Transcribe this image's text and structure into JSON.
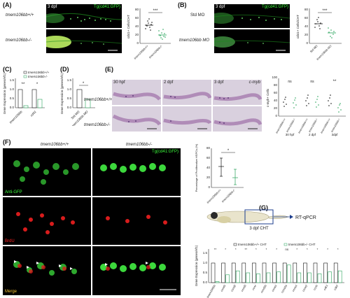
{
  "panels": {
    "A": {
      "letter": "(A)",
      "stage": "3 dpf",
      "transgene": "Tg(cd41:GFP)",
      "row_top": "tmem106bb+/+",
      "row_bottom": "tmem106bb-/-",
      "plot": {
        "ylabel": "cd41+ Cells/CHT",
        "yticks": [
          "0",
          "20",
          "40",
          "60",
          "80"
        ],
        "xticks": [
          "tmem106bb+/+",
          "tmem106bb-/-"
        ],
        "sig": "***"
      }
    },
    "B": {
      "letter": "(B)",
      "stage": "3 dpf",
      "transgene": "Tg(cd41:GFP)",
      "row_top": "Std MO",
      "row_bottom": "tmem106bb MO",
      "plot": {
        "ylabel": "cd41+ Cells/CHT",
        "yticks": [
          "0",
          "20",
          "40",
          "60",
          "80"
        ],
        "xticks": [
          "Std MO",
          "tmem106bb MO"
        ],
        "sig": "***"
      }
    },
    "C": {
      "letter": "(C)",
      "legend": [
        "tmem106bb+/+",
        "tmem106bb-/-"
      ],
      "ylabel": "Gene Expression (genes/ef1)",
      "yticks": [
        "0.0",
        "0.5",
        "1.0",
        "1.5"
      ],
      "xticks": [
        "tmem106bb",
        "cd41"
      ],
      "sigs": [
        "**",
        "*"
      ]
    },
    "D": {
      "letter": "(D)",
      "ylabel": "Gene Expression (genes/ef1)",
      "yticks": [
        "0.0",
        "0.5",
        "1.0",
        "1.5"
      ],
      "xticks": [
        "Std MO",
        "tmem106bb MO"
      ],
      "sig": "*"
    },
    "E": {
      "letter": "(E)",
      "stages": [
        "30 hpf",
        "2 dpf",
        "3 dpf"
      ],
      "probe": "c-myb",
      "row_top": "tmem106bb+/+",
      "row_bottom": "tmem106bb-/-",
      "plot": {
        "ylabel": "c-myb+ Cells",
        "yticks": [
          "0",
          "20",
          "40",
          "60",
          "80",
          "100"
        ],
        "xticks": [
          "tmem106bb+/+",
          "tmem106bb-/-",
          "tmem106bb+/+",
          "tmem106bb-/-",
          "tmem106bb+/+",
          "tmem106bb-/-"
        ],
        "groups": [
          "30 hpf",
          "2 dpf",
          "3dpf"
        ],
        "sigs": [
          "ns",
          "ns",
          "**"
        ]
      }
    },
    "F": {
      "letter": "(F)",
      "col_left": "tmem106bb+/+",
      "col_right": "tmem106bb-/-",
      "transgene": "Tg(cd41:GFP)",
      "channels": [
        "Anti-GFP",
        "BrdU",
        "Merge"
      ],
      "plot": {
        "ylabel": "Percentage of Proliferative HSPCs (%)",
        "yticks": [
          "0",
          "20",
          "40",
          "60",
          "80"
        ],
        "xticks": [
          "tmem106bb+/+",
          "tmem106bb-/-"
        ],
        "sig": "*"
      }
    },
    "G": {
      "letter": "(G)",
      "region": "3 dpf CHT",
      "assay": "RT-qPCR",
      "legend": [
        "tmem106bb+/+ CHT",
        "tmem106bb-/- CHT"
      ],
      "ylabel": "Gene Expression (genes/ef1)",
      "yticks": [
        "0.0",
        "0.5",
        "1.0",
        "1.5"
      ],
      "genes": [
        "tmem106bb",
        "ccnd1",
        "ccnd2",
        "ccnd3",
        "ccnc",
        "ccnd2b",
        "ccna1",
        "ccna2a",
        "ccne1",
        "ccne2",
        "ccnb",
        "cdk1",
        "cdk2"
      ],
      "sigs": [
        "**",
        "*",
        "*",
        "**",
        "*",
        "*",
        "*",
        "ns",
        "*",
        "*",
        "*",
        "*",
        "*"
      ],
      "wt_values": [
        1.0,
        1.0,
        1.0,
        1.0,
        1.0,
        1.0,
        1.0,
        1.0,
        1.0,
        1.0,
        1.0,
        1.0,
        1.0
      ],
      "mut_values": [
        0.05,
        0.4,
        0.6,
        0.5,
        0.45,
        0.5,
        0.55,
        0.9,
        0.5,
        0.5,
        0.45,
        0.55,
        0.6
      ]
    }
  },
  "colors": {
    "accent_green": "#27a35a",
    "gfp_green": "#3cff3c",
    "brdu_red": "#ff2020",
    "ish_purple": "#4a2a6a",
    "arrow_blue": "#1b3c8c"
  }
}
